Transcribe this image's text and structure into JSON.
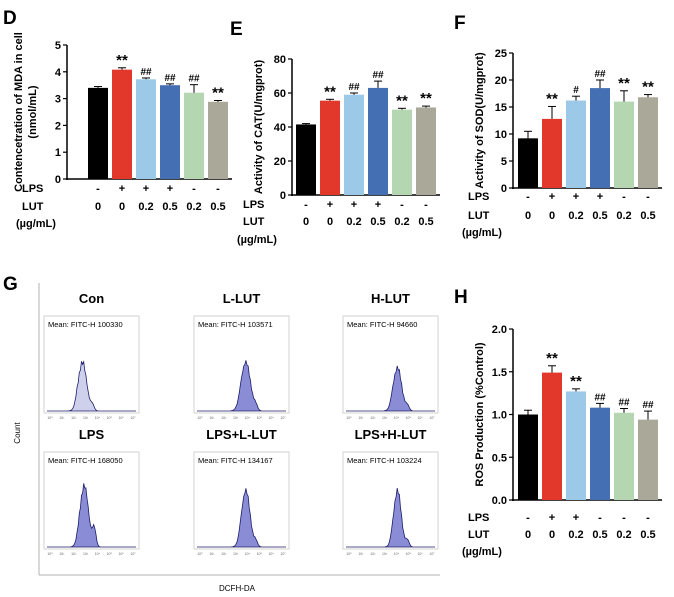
{
  "chart_data": [
    {
      "id": "D",
      "type": "bar",
      "panel_label": "D",
      "ylabel": "Contencetration of  MDA in cell\n(nmol/mL)",
      "ylim": [
        0,
        5
      ],
      "yticks": [
        "0",
        "1",
        "2",
        "3",
        "4",
        "5"
      ],
      "values": [
        3.4,
        4.08,
        3.72,
        3.5,
        3.22,
        2.88
      ],
      "errors": [
        0.05,
        0.07,
        0.05,
        0.05,
        0.3,
        0.05
      ],
      "annotations": [
        "",
        "**",
        "##",
        "##",
        "##",
        "**"
      ],
      "colors": [
        "#000000",
        "#e2382c",
        "#9dc9e8",
        "#4470b3",
        "#b4d6b0",
        "#aaa898"
      ],
      "conditions": {
        "lps_label": "LPS",
        "lut_label": "LUT",
        "unit": "(µg/mL)",
        "lps": [
          "-",
          "+",
          "+",
          "+",
          "-",
          "-"
        ],
        "lut": [
          "0",
          "0",
          "0.2",
          "0.5",
          "0.2",
          "0.5"
        ]
      }
    },
    {
      "id": "E",
      "type": "bar",
      "panel_label": "E",
      "ylabel": "Activity of CAT(U/mgprot)",
      "ylim": [
        0,
        80
      ],
      "yticks": [
        "0",
        "20",
        "40",
        "60",
        "80"
      ],
      "values": [
        41.5,
        55.5,
        59,
        63,
        50.2,
        51.5
      ],
      "errors": [
        0.5,
        0.8,
        1.0,
        4.0,
        0.8,
        0.8
      ],
      "annotations": [
        "",
        "**",
        "##",
        "##",
        "**",
        "**"
      ],
      "colors": [
        "#000000",
        "#e2382c",
        "#9dc9e8",
        "#4470b3",
        "#b4d6b0",
        "#aaa898"
      ],
      "conditions": {
        "lps_label": "LPS",
        "lut_label": "LUT",
        "unit": "(µg/mL)",
        "lps": [
          "-",
          "+",
          "+",
          "+",
          "-",
          "-"
        ],
        "lut": [
          "0",
          "0",
          "0.2",
          "0.5",
          "0.2",
          "0.5"
        ]
      }
    },
    {
      "id": "F",
      "type": "bar",
      "panel_label": "F",
      "ylabel": "Activity of SOD(U/mgprot)",
      "ylim": [
        0,
        25
      ],
      "yticks": [
        "0",
        "5",
        "10",
        "15",
        "20",
        "25"
      ],
      "values": [
        9.2,
        12.8,
        16.2,
        18.5,
        16.0,
        16.8
      ],
      "errors": [
        1.3,
        2.3,
        0.8,
        1.5,
        2.0,
        0.5
      ],
      "annotations": [
        "",
        "**",
        "#",
        "##",
        "**",
        "**"
      ],
      "colors": [
        "#000000",
        "#e2382c",
        "#9dc9e8",
        "#4470b3",
        "#b4d6b0",
        "#aaa898"
      ],
      "conditions": {
        "lps_label": "LPS",
        "lut_label": "LUT",
        "unit": "(µg/mL)",
        "lps": [
          "-",
          "+",
          "+",
          "+",
          "-",
          "-"
        ],
        "lut": [
          "0",
          "0",
          "0.2",
          "0.5",
          "0.2",
          "0.5"
        ]
      }
    },
    {
      "id": "H",
      "type": "bar",
      "panel_label": "H",
      "ylabel": "ROS Production (%Control)",
      "ylim": [
        0,
        2.0
      ],
      "yticks": [
        "0.0",
        "0.5",
        "1.0",
        "1.5",
        "2.0"
      ],
      "values": [
        1.0,
        1.49,
        1.27,
        1.08,
        1.02,
        0.94
      ],
      "errors": [
        0.05,
        0.08,
        0.03,
        0.05,
        0.05,
        0.1
      ],
      "annotations": [
        "",
        "**",
        "**",
        "##",
        "##",
        "##"
      ],
      "colors": [
        "#000000",
        "#e2382c",
        "#9dc9e8",
        "#4470b3",
        "#b4d6b0",
        "#aaa898"
      ],
      "conditions": {
        "lps_label": "LPS",
        "lut_label": "LUT",
        "unit": "(µg/mL)",
        "lps": [
          "-",
          "+",
          "+",
          "-",
          "-",
          "-"
        ],
        "lut": [
          "0",
          "0",
          "0.2",
          "0.5",
          "0.2",
          "0.5"
        ]
      }
    }
  ],
  "flow_panel": {
    "panel_label": "G",
    "y_axis_label": "Count",
    "x_axis_label": "DCFH-DA",
    "decade_ticks": [
      "10⁰",
      "10¹",
      "10²",
      "10³",
      "10⁴",
      "10⁵",
      "10⁶",
      "10⁷"
    ],
    "panels": [
      {
        "title": "Con",
        "mean_text": "Mean: FITC-H 100330",
        "fill": "#cfd0ec"
      },
      {
        "title": "L-LUT",
        "mean_text": "Mean: FITC-H 103571",
        "fill": "#8a8cd6"
      },
      {
        "title": "H-LUT",
        "mean_text": "Mean: FITC-H 94660",
        "fill": "#8a8cd6"
      },
      {
        "title": "LPS",
        "mean_text": "Mean: FITC-H 168050",
        "fill": "#8a8cd6"
      },
      {
        "title": "LPS+L-LUT",
        "mean_text": "Mean: FITC-H 134167",
        "fill": "#8a8cd6"
      },
      {
        "title": "LPS+H-LUT",
        "mean_text": "Mean: FITC-H 103224",
        "fill": "#8a8cd6"
      }
    ]
  }
}
